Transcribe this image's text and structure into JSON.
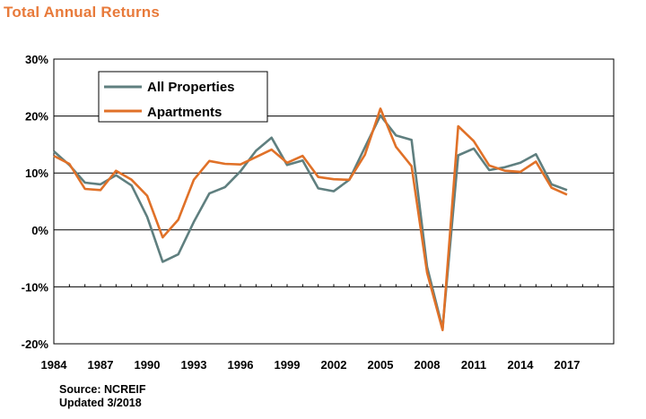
{
  "title": "Total Annual Returns",
  "footer": {
    "source": "Source: NCREIF",
    "updated": "Updated 3/2018"
  },
  "chart_data": {
    "type": "line",
    "title": "Total Annual Returns",
    "x": [
      1984,
      1985,
      1986,
      1987,
      1988,
      1989,
      1990,
      1991,
      1992,
      1993,
      1994,
      1995,
      1996,
      1997,
      1998,
      1999,
      2000,
      2001,
      2002,
      2003,
      2004,
      2005,
      2006,
      2007,
      2008,
      2009,
      2010,
      2011,
      2012,
      2013,
      2014,
      2015,
      2016,
      2017
    ],
    "xlim": [
      1984,
      2020
    ],
    "ylim": [
      -20,
      30
    ],
    "x_tick_labels": [
      "1984",
      "1987",
      "1990",
      "1993",
      "1996",
      "1999",
      "2002",
      "2005",
      "2008",
      "2011",
      "2014",
      "2017"
    ],
    "y_tick_labels": [
      "30%",
      "20%",
      "10%",
      "0%",
      "-10%",
      "-20%"
    ],
    "y_tick_values": [
      30,
      20,
      10,
      0,
      -10,
      -20
    ],
    "grid": true,
    "legend_placement": "top-left",
    "series": [
      {
        "name": "All Properties",
        "color": "#5f7f7f",
        "values": [
          13.8,
          11.4,
          8.3,
          8.0,
          9.6,
          7.8,
          2.3,
          -5.6,
          -4.3,
          1.4,
          6.4,
          7.5,
          10.3,
          13.9,
          16.2,
          11.4,
          12.2,
          7.3,
          6.8,
          8.8,
          14.5,
          20.1,
          16.6,
          15.8,
          -6.5,
          -17.3,
          13.1,
          14.3,
          10.5,
          11.0,
          11.8,
          13.3,
          8.0,
          7.0
        ]
      },
      {
        "name": "Apartments",
        "color": "#e07128",
        "values": [
          13.0,
          11.6,
          7.2,
          7.0,
          10.4,
          8.8,
          6.0,
          -1.3,
          1.8,
          8.8,
          12.1,
          11.6,
          11.5,
          12.8,
          14.1,
          11.8,
          13.0,
          9.3,
          8.9,
          8.8,
          13.2,
          21.3,
          14.6,
          11.2,
          -7.5,
          -17.6,
          18.2,
          15.6,
          11.3,
          10.4,
          10.2,
          12.0,
          7.4,
          6.2
        ]
      }
    ]
  }
}
